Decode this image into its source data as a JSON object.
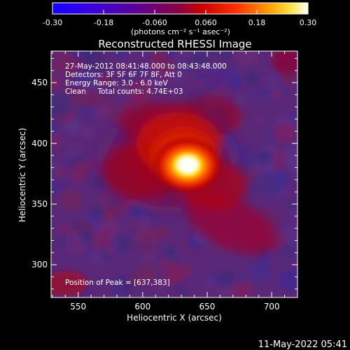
{
  "colorbar": {
    "ticks": [
      "-0.30",
      "-0.18",
      "-0.060",
      "0.060",
      "0.18",
      "0.30"
    ],
    "unit_label": "(photons cm⁻² s⁻¹ asec⁻²)",
    "range": [
      -0.3,
      0.3
    ],
    "colors": [
      "#1400ff",
      "#4a00c8",
      "#7a0070",
      "#c80000",
      "#ff6a00",
      "#ffd000",
      "#ffffff"
    ]
  },
  "title": "Reconstructed RHESSI Image",
  "annotations": {
    "time_range": "27-May-2012 08:41:48.000 to 08:43:48.000",
    "detectors": "Detectors: 3F 5F 6F 7F 8F, Att 0",
    "energy": "Energy Range: 3.0 - 6.0 keV",
    "clean": "Clean     Total counts: 4.74E+03",
    "peak": "Position of Peak = [637,383]"
  },
  "axes": {
    "xlabel": "Heliocentric X (arcsec)",
    "ylabel": "Heliocentric Y (arcsec)",
    "xticks": [
      "550",
      "600",
      "650",
      "700"
    ],
    "yticks": [
      "300",
      "350",
      "400",
      "450"
    ],
    "xlim": [
      529,
      720
    ],
    "ylim": [
      273,
      476
    ]
  },
  "image": {
    "peak_xy": [
      637,
      383
    ],
    "background_color": "#5a2878",
    "bright_color": "#ffffff"
  },
  "footer": {
    "timestamp": "11-May-2022 05:41"
  }
}
